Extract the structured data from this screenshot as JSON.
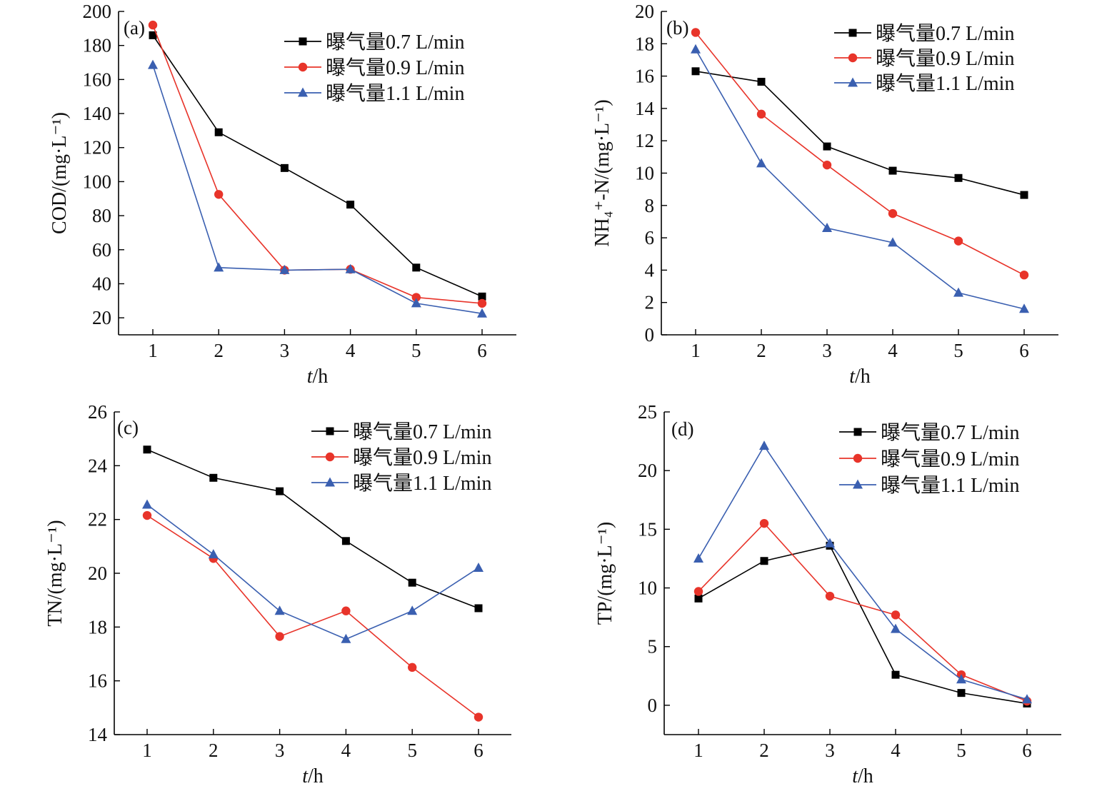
{
  "chart_data": [
    {
      "panel": "(a)",
      "type": "line",
      "x": [
        1,
        2,
        3,
        4,
        5,
        6
      ],
      "xlabel_italic": "t",
      "xlabel_unit": "/h",
      "ylabel": "COD/(mg·L⁻¹)",
      "ylim": [
        10,
        200
      ],
      "yticks": [
        20,
        40,
        60,
        80,
        100,
        120,
        140,
        160,
        180,
        200
      ],
      "legend_position": "top-right",
      "series": [
        {
          "name": "曝气量0.7 L/min",
          "values": [
            186,
            129,
            108,
            86.5,
            49.5,
            32.5
          ]
        },
        {
          "name": "曝气量0.9 L/min",
          "values": [
            192,
            92.5,
            48,
            48.5,
            32,
            28.5
          ]
        },
        {
          "name": "曝气量1.1 L/min",
          "values": [
            168.5,
            49.5,
            48,
            48.5,
            28.5,
            22.5
          ]
        }
      ]
    },
    {
      "panel": "(b)",
      "type": "line",
      "x": [
        1,
        2,
        3,
        4,
        5,
        6
      ],
      "xlabel_italic": "t",
      "xlabel_unit": "/h",
      "ylabel": "NH₄⁺-N/(mg·L⁻¹)",
      "ylim": [
        0,
        20
      ],
      "yticks": [
        0,
        2,
        4,
        6,
        8,
        10,
        12,
        14,
        16,
        18,
        20
      ],
      "legend_position": "top-right",
      "series": [
        {
          "name": "曝气量0.7 L/min",
          "values": [
            16.3,
            15.65,
            11.65,
            10.15,
            9.7,
            8.65
          ]
        },
        {
          "name": "曝气量0.9 L/min",
          "values": [
            18.7,
            13.65,
            10.5,
            7.5,
            5.8,
            3.7
          ]
        },
        {
          "name": "曝气量1.1 L/min",
          "values": [
            17.65,
            10.6,
            6.6,
            5.7,
            2.6,
            1.6
          ]
        }
      ]
    },
    {
      "panel": "(c)",
      "type": "line",
      "x": [
        1,
        2,
        3,
        4,
        5,
        6
      ],
      "xlabel_italic": "t",
      "xlabel_unit": "/h",
      "ylabel": "TN/(mg·L⁻¹)",
      "ylim": [
        14,
        26
      ],
      "yticks": [
        14,
        16,
        18,
        20,
        22,
        24,
        26
      ],
      "legend_position": "top-right",
      "series": [
        {
          "name": "曝气量0.7 L/min",
          "values": [
            24.6,
            23.55,
            23.05,
            21.2,
            19.65,
            18.7
          ]
        },
        {
          "name": "曝气量0.9 L/min",
          "values": [
            22.15,
            20.55,
            17.65,
            18.6,
            16.5,
            14.65
          ]
        },
        {
          "name": "曝气量1.1 L/min",
          "values": [
            22.55,
            20.7,
            18.6,
            17.55,
            18.6,
            20.2
          ]
        }
      ]
    },
    {
      "panel": "(d)",
      "type": "line",
      "x": [
        1,
        2,
        3,
        4,
        5,
        6
      ],
      "xlabel_italic": "t",
      "xlabel_unit": "/h",
      "ylabel": "TP/(mg·L⁻¹)",
      "ylim": [
        -2.5,
        25
      ],
      "yticks": [
        0,
        5,
        10,
        15,
        20,
        25
      ],
      "legend_position": "top-right",
      "series": [
        {
          "name": "曝气量0.7 L/min",
          "values": [
            9.1,
            12.3,
            13.6,
            2.6,
            1.05,
            0.15
          ]
        },
        {
          "name": "曝气量0.9 L/min",
          "values": [
            9.7,
            15.5,
            9.3,
            7.7,
            2.6,
            0.35
          ]
        },
        {
          "name": "曝气量1.1 L/min",
          "values": [
            12.5,
            22.1,
            13.8,
            6.5,
            2.2,
            0.5
          ]
        }
      ]
    }
  ],
  "series_colors": [
    "#000000",
    "#e8342a",
    "#3a5fb0"
  ],
  "series_markers": [
    "square",
    "circle",
    "triangle"
  ]
}
